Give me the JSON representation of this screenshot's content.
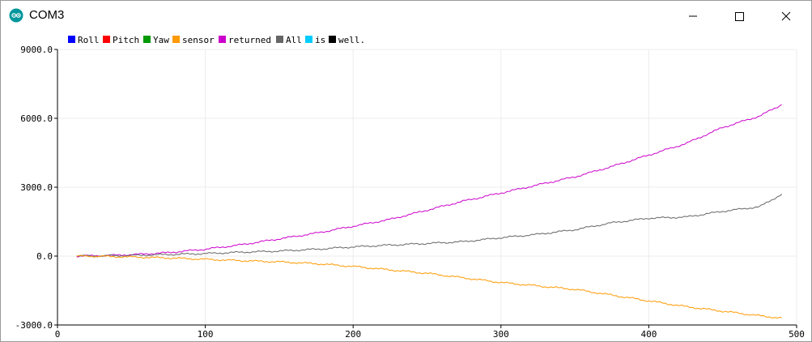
{
  "window": {
    "title": "COM3",
    "app_icon": "arduino-logo-icon",
    "controls": {
      "minimize_icon": "minimize-icon",
      "maximize_icon": "maximize-icon",
      "close_icon": "close-icon"
    }
  },
  "chart_data": {
    "type": "line",
    "title": "",
    "xlabel": "",
    "ylabel": "",
    "xlim": [
      0,
      500
    ],
    "ylim": [
      -3000,
      9000
    ],
    "x_ticks": [
      0,
      100,
      200,
      300,
      400,
      500
    ],
    "y_ticks": [
      -3000,
      0,
      3000,
      6000,
      9000
    ],
    "x_tick_labels": [
      "0",
      "100",
      "200",
      "300",
      "400",
      "500"
    ],
    "y_tick_labels": [
      "-3000.0",
      "0.0",
      "3000.0",
      "6000.0",
      "9000.0"
    ],
    "grid": true,
    "legend_placement": "top-left",
    "legend": [
      {
        "name": "Roll",
        "color": "#0000ff"
      },
      {
        "name": "Pitch",
        "color": "#ff0000"
      },
      {
        "name": "Yaw",
        "color": "#009900"
      },
      {
        "name": "sensor",
        "color": "#ff9900"
      },
      {
        "name": "returned",
        "color": "#cc00cc"
      },
      {
        "name": "All",
        "color": "#666666"
      },
      {
        "name": "is",
        "color": "#00ccff"
      },
      {
        "name": "well.",
        "color": "#000000"
      }
    ],
    "series": [
      {
        "name": "returned",
        "color": "#cc00cc",
        "points": [
          [
            13,
            0
          ],
          [
            30,
            20
          ],
          [
            50,
            60
          ],
          [
            75,
            150
          ],
          [
            100,
            300
          ],
          [
            125,
            500
          ],
          [
            150,
            750
          ],
          [
            175,
            1000
          ],
          [
            200,
            1300
          ],
          [
            225,
            1600
          ],
          [
            250,
            2000
          ],
          [
            275,
            2400
          ],
          [
            300,
            2750
          ],
          [
            325,
            3100
          ],
          [
            350,
            3450
          ],
          [
            375,
            3900
          ],
          [
            400,
            4400
          ],
          [
            425,
            4900
          ],
          [
            450,
            5600
          ],
          [
            475,
            6100
          ],
          [
            490,
            6600
          ]
        ]
      },
      {
        "name": "All",
        "color": "#666666",
        "points": [
          [
            13,
            0
          ],
          [
            30,
            10
          ],
          [
            50,
            30
          ],
          [
            75,
            70
          ],
          [
            100,
            110
          ],
          [
            125,
            170
          ],
          [
            150,
            220
          ],
          [
            175,
            300
          ],
          [
            200,
            400
          ],
          [
            225,
            480
          ],
          [
            250,
            550
          ],
          [
            275,
            630
          ],
          [
            300,
            800
          ],
          [
            325,
            950
          ],
          [
            350,
            1150
          ],
          [
            375,
            1450
          ],
          [
            400,
            1650
          ],
          [
            425,
            1700
          ],
          [
            450,
            1950
          ],
          [
            475,
            2150
          ],
          [
            490,
            2700
          ]
        ]
      },
      {
        "name": "sensor",
        "color": "#ff9900",
        "points": [
          [
            13,
            0
          ],
          [
            30,
            -10
          ],
          [
            50,
            -40
          ],
          [
            75,
            -80
          ],
          [
            100,
            -140
          ],
          [
            125,
            -200
          ],
          [
            150,
            -250
          ],
          [
            175,
            -330
          ],
          [
            200,
            -450
          ],
          [
            225,
            -600
          ],
          [
            250,
            -750
          ],
          [
            275,
            -950
          ],
          [
            300,
            -1150
          ],
          [
            325,
            -1300
          ],
          [
            350,
            -1450
          ],
          [
            375,
            -1700
          ],
          [
            400,
            -1950
          ],
          [
            425,
            -2200
          ],
          [
            450,
            -2400
          ],
          [
            475,
            -2600
          ],
          [
            490,
            -2700
          ]
        ]
      }
    ]
  }
}
